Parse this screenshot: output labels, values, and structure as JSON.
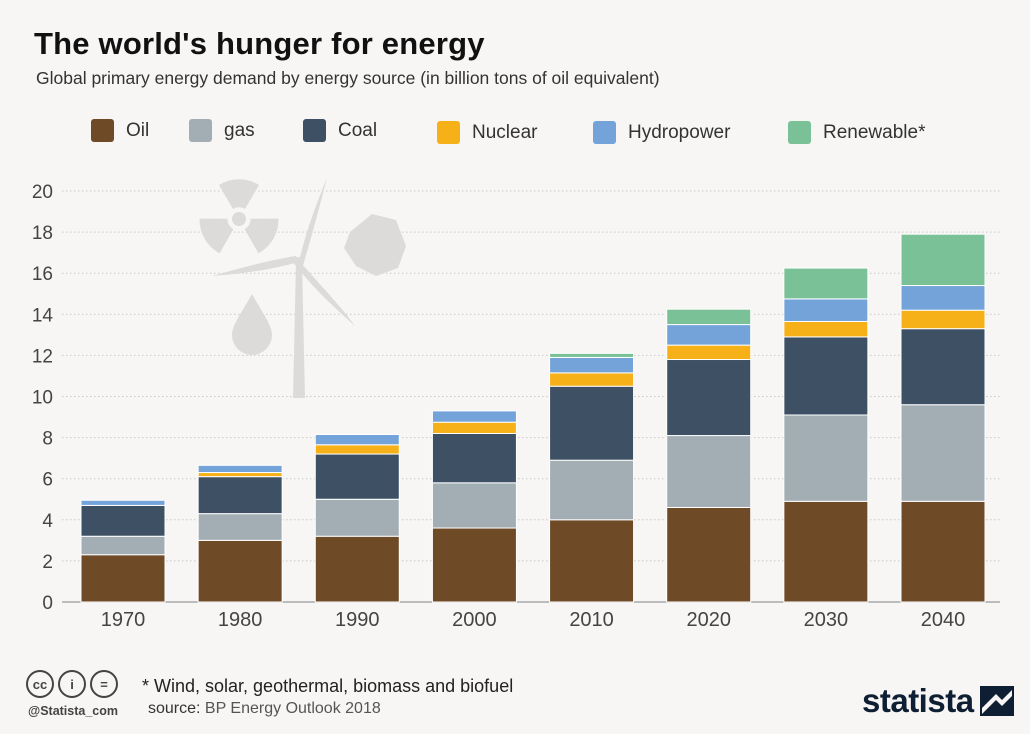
{
  "header": {
    "title": "The world's hunger for energy",
    "subtitle": "Global primary energy demand by energy source (in billion tons of oil equivalent)"
  },
  "chart_data": {
    "type": "bar",
    "stacked": true,
    "categories": [
      "1970",
      "1980",
      "1990",
      "2000",
      "2010",
      "2020",
      "2030",
      "2040"
    ],
    "series": [
      {
        "name": "Oil",
        "color": "#6f4a26",
        "values": [
          2.3,
          3.0,
          3.2,
          3.6,
          4.0,
          4.6,
          4.9,
          4.9
        ]
      },
      {
        "name": "gas",
        "color": "#a3aeb4",
        "values": [
          0.9,
          1.3,
          1.8,
          2.2,
          2.9,
          3.5,
          4.2,
          4.7
        ]
      },
      {
        "name": "Coal",
        "color": "#3d5064",
        "values": [
          1.5,
          1.8,
          2.2,
          2.4,
          3.6,
          3.7,
          3.8,
          3.7
        ]
      },
      {
        "name": "Nuclear",
        "color": "#f6b118",
        "values": [
          0.0,
          0.2,
          0.45,
          0.55,
          0.65,
          0.7,
          0.75,
          0.9
        ]
      },
      {
        "name": "Hydropower",
        "color": "#74a3da",
        "values": [
          0.25,
          0.35,
          0.5,
          0.55,
          0.75,
          1.0,
          1.1,
          1.2
        ]
      },
      {
        "name": "Renewable*",
        "color": "#7ac198",
        "values": [
          0.0,
          0.0,
          0.0,
          0.0,
          0.2,
          0.75,
          1.5,
          2.5
        ]
      }
    ],
    "ylim": [
      0,
      20
    ],
    "yticks": [
      "0",
      "2",
      "4",
      "6",
      "8",
      "10",
      "12",
      "14",
      "16",
      "18",
      "20"
    ],
    "grid": true,
    "legend_position": "top"
  },
  "footer": {
    "note": "* Wind, solar, geothermal, biomass and biofuel",
    "source_label": "source:",
    "source_value": "BP Energy Outlook 2018",
    "handle": "@Statista_com",
    "brand": "statista"
  },
  "icons": {
    "cc": "cc",
    "by": "i",
    "nd": "="
  }
}
